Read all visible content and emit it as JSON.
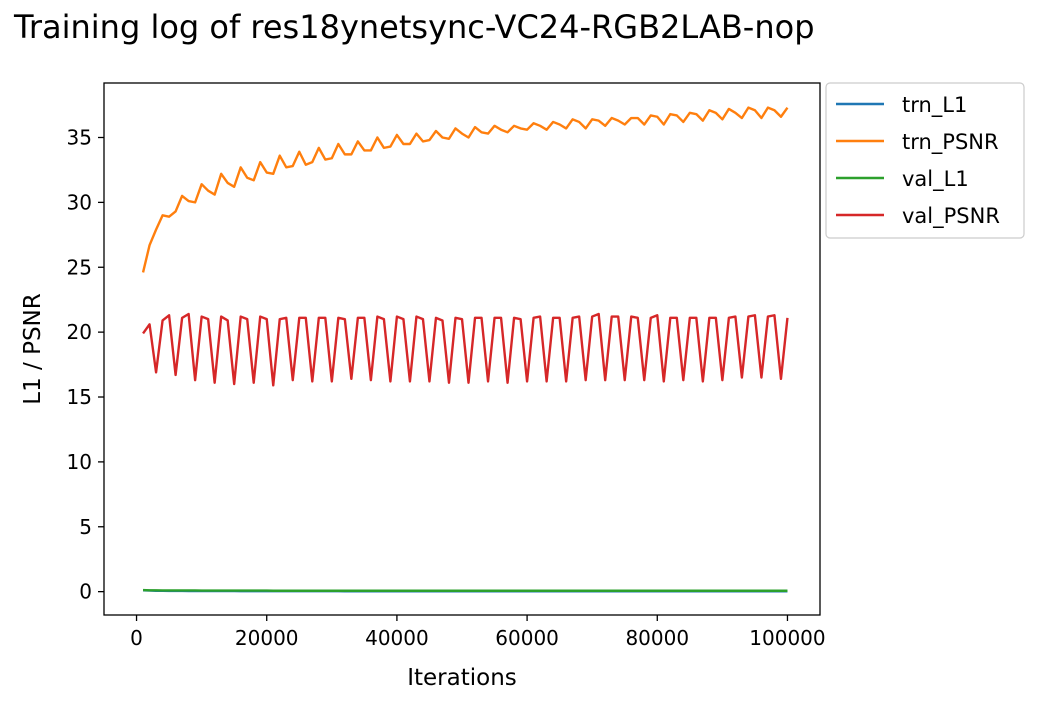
{
  "chart_data": {
    "type": "line",
    "title": "Training log of res18ynetsync-VC24-RGB2LAB-nop",
    "xlabel": "Iterations",
    "ylabel": "L1 / PSNR",
    "xlim": [
      -5000,
      105000
    ],
    "ylim": [
      -1.8,
      39.2
    ],
    "xticks": [
      0,
      20000,
      40000,
      60000,
      80000,
      100000
    ],
    "yticks": [
      0,
      5,
      10,
      15,
      20,
      25,
      30,
      35
    ],
    "legend_location": "outside upper right",
    "x": [
      1000,
      2000,
      3000,
      4000,
      5000,
      6000,
      7000,
      8000,
      9000,
      10000,
      11000,
      12000,
      13000,
      14000,
      15000,
      16000,
      17000,
      18000,
      19000,
      20000,
      21000,
      22000,
      23000,
      24000,
      25000,
      26000,
      27000,
      28000,
      29000,
      30000,
      31000,
      32000,
      33000,
      34000,
      35000,
      36000,
      37000,
      38000,
      39000,
      40000,
      41000,
      42000,
      43000,
      44000,
      45000,
      46000,
      47000,
      48000,
      49000,
      50000,
      51000,
      52000,
      53000,
      54000,
      55000,
      56000,
      57000,
      58000,
      59000,
      60000,
      61000,
      62000,
      63000,
      64000,
      65000,
      66000,
      67000,
      68000,
      69000,
      70000,
      71000,
      72000,
      73000,
      74000,
      75000,
      76000,
      77000,
      78000,
      79000,
      80000,
      81000,
      82000,
      83000,
      84000,
      85000,
      86000,
      87000,
      88000,
      89000,
      90000,
      91000,
      92000,
      93000,
      94000,
      95000,
      96000,
      97000,
      98000,
      99000,
      100000
    ],
    "series": [
      {
        "name": "trn_L1",
        "color": "#1f77b4",
        "values": [
          0.1,
          0.08,
          0.07,
          0.07,
          0.06,
          0.06,
          0.06,
          0.05,
          0.05,
          0.05,
          0.05,
          0.05,
          0.05,
          0.05,
          0.05,
          0.04,
          0.04,
          0.04,
          0.04,
          0.04,
          0.04,
          0.04,
          0.04,
          0.04,
          0.04,
          0.04,
          0.04,
          0.04,
          0.04,
          0.04,
          0.04,
          0.03,
          0.03,
          0.03,
          0.03,
          0.03,
          0.03,
          0.03,
          0.03,
          0.03,
          0.03,
          0.03,
          0.03,
          0.03,
          0.03,
          0.03,
          0.03,
          0.03,
          0.03,
          0.03,
          0.03,
          0.03,
          0.03,
          0.03,
          0.03,
          0.03,
          0.03,
          0.03,
          0.03,
          0.03,
          0.03,
          0.03,
          0.03,
          0.03,
          0.03,
          0.03,
          0.03,
          0.03,
          0.03,
          0.03,
          0.03,
          0.03,
          0.03,
          0.03,
          0.03,
          0.03,
          0.03,
          0.03,
          0.03,
          0.03,
          0.03,
          0.03,
          0.03,
          0.03,
          0.03,
          0.03,
          0.03,
          0.03,
          0.03,
          0.03,
          0.03,
          0.03,
          0.03,
          0.03,
          0.03,
          0.03,
          0.03,
          0.03,
          0.03,
          0.03
        ]
      },
      {
        "name": "trn_PSNR",
        "color": "#ff7f0e",
        "values": [
          24.6,
          26.7,
          27.9,
          29.0,
          28.9,
          29.3,
          30.5,
          30.1,
          30.0,
          31.4,
          30.9,
          30.6,
          32.2,
          31.5,
          31.2,
          32.7,
          31.9,
          31.7,
          33.1,
          32.3,
          32.2,
          33.6,
          32.7,
          32.8,
          33.9,
          32.9,
          33.1,
          34.2,
          33.3,
          33.4,
          34.5,
          33.7,
          33.7,
          34.7,
          34.0,
          34.0,
          35.0,
          34.2,
          34.3,
          35.2,
          34.5,
          34.5,
          35.3,
          34.7,
          34.8,
          35.5,
          35.0,
          34.9,
          35.7,
          35.3,
          35.0,
          35.8,
          35.4,
          35.3,
          35.9,
          35.6,
          35.4,
          35.9,
          35.7,
          35.6,
          36.1,
          35.9,
          35.6,
          36.2,
          36.0,
          35.7,
          36.4,
          36.2,
          35.7,
          36.4,
          36.3,
          35.9,
          36.5,
          36.3,
          36.0,
          36.5,
          36.5,
          36.0,
          36.7,
          36.6,
          36.0,
          36.8,
          36.7,
          36.2,
          36.9,
          36.8,
          36.3,
          37.1,
          36.9,
          36.4,
          37.2,
          36.9,
          36.5,
          37.3,
          37.1,
          36.5,
          37.3,
          37.1,
          36.6,
          37.3
        ]
      },
      {
        "name": "val_L1",
        "color": "#2ca02c",
        "values": [
          0.12,
          0.1,
          0.1,
          0.09,
          0.09,
          0.09,
          0.09,
          0.09,
          0.09,
          0.08,
          0.08,
          0.08,
          0.08,
          0.08,
          0.08,
          0.08,
          0.08,
          0.08,
          0.08,
          0.08,
          0.07,
          0.07,
          0.07,
          0.07,
          0.07,
          0.07,
          0.07,
          0.07,
          0.07,
          0.07,
          0.07,
          0.07,
          0.07,
          0.07,
          0.07,
          0.07,
          0.07,
          0.07,
          0.07,
          0.07,
          0.07,
          0.07,
          0.07,
          0.07,
          0.07,
          0.07,
          0.07,
          0.07,
          0.07,
          0.07,
          0.07,
          0.07,
          0.07,
          0.07,
          0.07,
          0.07,
          0.07,
          0.07,
          0.07,
          0.07,
          0.07,
          0.07,
          0.07,
          0.07,
          0.07,
          0.07,
          0.07,
          0.07,
          0.07,
          0.07,
          0.07,
          0.07,
          0.07,
          0.07,
          0.07,
          0.07,
          0.07,
          0.07,
          0.07,
          0.07,
          0.07,
          0.07,
          0.07,
          0.07,
          0.07,
          0.07,
          0.07,
          0.07,
          0.07,
          0.07,
          0.07,
          0.07,
          0.07,
          0.07,
          0.07,
          0.07,
          0.07,
          0.07,
          0.07,
          0.07
        ]
      },
      {
        "name": "val_PSNR",
        "color": "#d62728",
        "values": [
          19.9,
          20.6,
          16.9,
          20.9,
          21.3,
          16.7,
          21.1,
          21.4,
          16.3,
          21.2,
          21.0,
          16.1,
          21.2,
          20.9,
          16.0,
          21.2,
          21.0,
          16.1,
          21.2,
          21.0,
          15.9,
          21.0,
          21.1,
          16.3,
          21.1,
          21.1,
          16.2,
          21.1,
          21.1,
          16.2,
          21.1,
          21.0,
          16.4,
          21.1,
          21.1,
          16.3,
          21.2,
          21.0,
          16.2,
          21.2,
          21.0,
          16.2,
          21.2,
          21.0,
          16.2,
          21.1,
          20.9,
          16.1,
          21.1,
          21.0,
          16.1,
          21.1,
          21.1,
          16.2,
          21.1,
          21.1,
          16.1,
          21.1,
          21.0,
          16.2,
          21.1,
          21.2,
          16.2,
          21.1,
          21.1,
          16.2,
          21.1,
          21.2,
          16.3,
          21.2,
          21.4,
          16.3,
          21.2,
          21.2,
          16.3,
          21.2,
          21.1,
          16.3,
          21.1,
          21.3,
          16.2,
          21.1,
          21.1,
          16.3,
          21.1,
          21.1,
          16.2,
          21.1,
          21.1,
          16.3,
          21.1,
          21.2,
          16.5,
          21.2,
          21.3,
          16.5,
          21.2,
          21.3,
          16.4,
          21.1
        ]
      }
    ]
  }
}
